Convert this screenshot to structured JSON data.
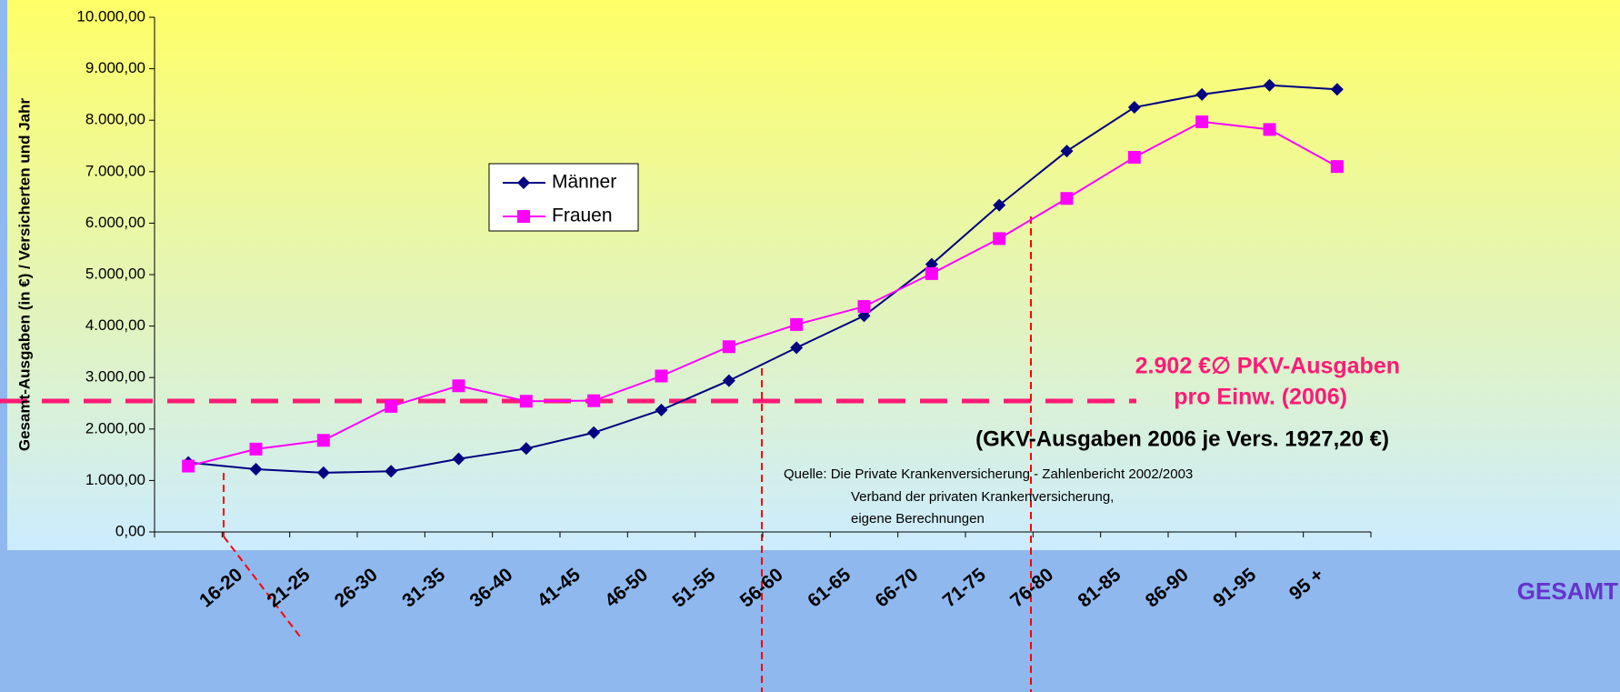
{
  "chart_data": {
    "type": "line",
    "y_label": "Gesamt-Ausgaben (in €) / Versicherten und Jahr",
    "categories": [
      "16-20",
      "21-25",
      "26-30",
      "31-35",
      "36-40",
      "41-45",
      "46-50",
      "51-55",
      "56-60",
      "61-65",
      "66-70",
      "71-75",
      "76-80",
      "81-85",
      "86-90",
      "91-95",
      "95 +",
      "GESAMT"
    ],
    "series": [
      {
        "name": "Männer",
        "color": "#000080",
        "marker": "diamond",
        "values": [
          1350,
          1220,
          1150,
          1180,
          1420,
          1620,
          1930,
          2370,
          2940,
          3580,
          4200,
          5200,
          6350,
          7400,
          8250,
          8500,
          8680,
          8600
        ]
      },
      {
        "name": "Frauen",
        "color": "#ff00ff",
        "marker": "square",
        "values": [
          1280,
          1610,
          1780,
          2440,
          2840,
          2540,
          2550,
          3030,
          3600,
          4030,
          4380,
          5020,
          5700,
          6480,
          7280,
          7970,
          7820,
          7100
        ]
      }
    ],
    "ylim": [
      0,
      10000
    ],
    "yticks": [
      {
        "value": 0,
        "label": "0,00"
      },
      {
        "value": 1000,
        "label": "1.000,00"
      },
      {
        "value": 2000,
        "label": "2.000,00"
      },
      {
        "value": 3000,
        "label": "3.000,00"
      },
      {
        "value": 4000,
        "label": "4.000,00"
      },
      {
        "value": 5000,
        "label": "5.000,00"
      },
      {
        "value": 6000,
        "label": "6.000,00"
      },
      {
        "value": 7000,
        "label": "7.000,00"
      },
      {
        "value": 8000,
        "label": "8.000,00"
      },
      {
        "value": 9000,
        "label": "9.000,00"
      },
      {
        "value": 10000,
        "label": "10.000,00"
      }
    ],
    "annotations": {
      "pkv_line1": "2.902 €∅ PKV-Ausgaben",
      "pkv_line2": "pro Einw. (2006)",
      "gkv": "(GKV-Ausgaben 2006 je Vers. 1927,20 €)",
      "source": [
        "Quelle: Die Private Krankenversicherung - Zahlenbericht 2002/2003",
        "Verband der privaten Krankenversicherung,",
        "eigene Berechnungen"
      ]
    }
  }
}
